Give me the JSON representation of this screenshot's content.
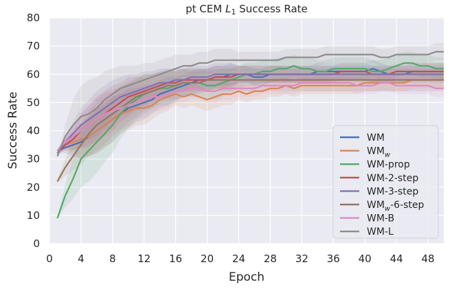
{
  "chart_data": {
    "type": "line",
    "title_prefix": "pt CEM ",
    "title_var": "L",
    "title_sub": "1",
    "title_suffix": " Success Rate",
    "xlabel": "Epoch",
    "ylabel": "Success Rate",
    "xlim": [
      0,
      50
    ],
    "ylim": [
      0,
      80
    ],
    "xticks": [
      0,
      4,
      8,
      12,
      16,
      20,
      24,
      28,
      32,
      36,
      40,
      44,
      48
    ],
    "yticks": [
      0,
      10,
      20,
      30,
      40,
      50,
      60,
      70,
      80
    ],
    "grid": true,
    "legend_position": "lower-right",
    "x": [
      1,
      2,
      3,
      4,
      5,
      6,
      7,
      8,
      9,
      10,
      11,
      12,
      13,
      14,
      15,
      16,
      17,
      18,
      19,
      20,
      21,
      22,
      23,
      24,
      25,
      26,
      27,
      28,
      29,
      30,
      31,
      32,
      33,
      34,
      35,
      36,
      37,
      38,
      39,
      40,
      41,
      42,
      43,
      44,
      45,
      46,
      47,
      48,
      49,
      50
    ],
    "series": [
      {
        "name": "WM",
        "legend_main": "WM",
        "legend_sub": "",
        "color": "#4c72b0",
        "values": [
          33,
          34,
          35,
          36,
          38,
          40,
          42,
          44,
          46,
          48,
          49,
          50,
          51,
          53,
          54,
          55,
          56,
          57,
          58,
          58,
          59,
          59,
          60,
          60,
          60,
          59,
          59,
          60,
          60,
          60,
          60,
          60,
          60,
          61,
          61,
          61,
          61,
          61,
          61,
          61,
          62,
          61,
          60,
          60,
          60,
          61,
          61,
          61,
          61,
          61
        ],
        "spread": [
          0.5,
          2,
          4,
          6,
          7,
          8,
          8,
          8,
          7,
          7,
          6,
          6,
          5,
          5,
          5,
          4,
          4,
          4,
          4,
          4,
          4,
          4,
          4,
          3,
          3,
          3,
          3,
          3,
          3,
          3,
          3,
          3,
          3,
          3,
          3,
          3,
          3,
          3,
          3,
          3,
          3,
          3,
          3,
          3,
          3,
          3,
          3,
          3,
          3,
          3
        ]
      },
      {
        "name": "WMw",
        "legend_main": "WM",
        "legend_sub": "w",
        "color": "#dd8452",
        "values": [
          33,
          35,
          36,
          37,
          38,
          40,
          42,
          44,
          46,
          47,
          48,
          48,
          49,
          51,
          52,
          53,
          52,
          53,
          52,
          51,
          52,
          53,
          53,
          54,
          53,
          54,
          54,
          55,
          55,
          56,
          55,
          56,
          56,
          56,
          56,
          56,
          56,
          56,
          56,
          57,
          57,
          57,
          57,
          57,
          57,
          58,
          58,
          58,
          58,
          58
        ],
        "spread": [
          0.5,
          2,
          4,
          6,
          7,
          8,
          8,
          8,
          7,
          7,
          6,
          6,
          5,
          5,
          5,
          4,
          4,
          4,
          4,
          4,
          4,
          4,
          4,
          3,
          3,
          3,
          3,
          3,
          3,
          3,
          3,
          3,
          3,
          3,
          3,
          3,
          3,
          3,
          3,
          3,
          3,
          3,
          3,
          3,
          3,
          3,
          3,
          3,
          3,
          3
        ]
      },
      {
        "name": "WM-prop",
        "legend_main": "WM-prop",
        "legend_sub": "",
        "color": "#55a868",
        "values": [
          9,
          17,
          23,
          30,
          33,
          36,
          39,
          42,
          46,
          49,
          51,
          53,
          54,
          55,
          55,
          56,
          57,
          57,
          57,
          56,
          56,
          57,
          58,
          59,
          60,
          60,
          61,
          61,
          62,
          62,
          63,
          62,
          62,
          61,
          61,
          62,
          62,
          62,
          62,
          62,
          61,
          61,
          62,
          63,
          64,
          64,
          63,
          63,
          62,
          62
        ],
        "spread": [
          0.5,
          4,
          7,
          10,
          11,
          11,
          10,
          10,
          9,
          8,
          7,
          7,
          6,
          6,
          6,
          6,
          5,
          5,
          5,
          5,
          5,
          5,
          4,
          4,
          4,
          4,
          4,
          4,
          4,
          4,
          4,
          4,
          4,
          4,
          4,
          4,
          4,
          4,
          4,
          4,
          4,
          4,
          4,
          4,
          4,
          4,
          4,
          4,
          4,
          4
        ]
      },
      {
        "name": "WM-2-step",
        "legend_main": "WM-2-step",
        "legend_sub": "",
        "color": "#c44e52",
        "values": [
          32,
          35,
          37,
          40,
          42,
          44,
          46,
          48,
          50,
          52,
          53,
          54,
          55,
          56,
          57,
          57,
          58,
          58,
          58,
          58,
          59,
          59,
          59,
          60,
          60,
          60,
          60,
          60,
          60,
          60,
          60,
          60,
          60,
          60,
          60,
          60,
          61,
          61,
          61,
          61,
          60,
          60,
          60,
          61,
          61,
          61,
          61,
          61,
          61,
          61
        ],
        "spread": [
          0.5,
          2,
          4,
          6,
          7,
          8,
          8,
          8,
          7,
          7,
          6,
          6,
          5,
          5,
          5,
          4,
          4,
          4,
          4,
          4,
          4,
          4,
          4,
          3,
          3,
          3,
          3,
          3,
          3,
          3,
          3,
          3,
          3,
          3,
          3,
          3,
          3,
          3,
          3,
          3,
          3,
          3,
          3,
          3,
          3,
          3,
          3,
          3,
          3,
          3
        ]
      },
      {
        "name": "WM-3-step",
        "legend_main": "WM-3-step",
        "legend_sub": "",
        "color": "#8172b3",
        "values": [
          32,
          36,
          39,
          42,
          44,
          46,
          48,
          50,
          52,
          53,
          54,
          55,
          56,
          57,
          57,
          58,
          58,
          59,
          59,
          59,
          60,
          60,
          60,
          60,
          60,
          60,
          60,
          60,
          60,
          60,
          60,
          60,
          60,
          60,
          60,
          60,
          60,
          60,
          60,
          60,
          60,
          60,
          60,
          60,
          60,
          60,
          60,
          60,
          60,
          60
        ],
        "spread": [
          0.5,
          2,
          4,
          6,
          7,
          8,
          8,
          8,
          7,
          7,
          6,
          6,
          5,
          5,
          5,
          4,
          4,
          4,
          4,
          4,
          4,
          4,
          4,
          3,
          3,
          3,
          3,
          3,
          3,
          3,
          3,
          3,
          3,
          3,
          3,
          3,
          3,
          3,
          3,
          3,
          3,
          3,
          3,
          3,
          3,
          3,
          3,
          3,
          3,
          3
        ]
      },
      {
        "name": "WMw-6-step",
        "legend_main": "WM",
        "legend_sub": "w",
        "legend_tail": "-6-step",
        "color": "#937860",
        "values": [
          22,
          27,
          31,
          35,
          39,
          42,
          44,
          46,
          48,
          50,
          52,
          53,
          54,
          55,
          56,
          56,
          57,
          57,
          57,
          58,
          58,
          58,
          58,
          58,
          58,
          58,
          58,
          58,
          58,
          58,
          58,
          58,
          58,
          58,
          58,
          58,
          58,
          58,
          58,
          58,
          58,
          58,
          58,
          58,
          58,
          58,
          58,
          58,
          58,
          58
        ],
        "spread": [
          0.5,
          3,
          5,
          7,
          8,
          9,
          9,
          8,
          8,
          7,
          7,
          6,
          6,
          5,
          5,
          5,
          5,
          4,
          4,
          4,
          4,
          4,
          4,
          4,
          4,
          4,
          4,
          4,
          4,
          4,
          4,
          4,
          4,
          4,
          4,
          4,
          4,
          4,
          4,
          4,
          4,
          4,
          4,
          4,
          4,
          4,
          4,
          4,
          4,
          4
        ]
      },
      {
        "name": "WM-B",
        "legend_main": "WM-B",
        "legend_sub": "",
        "color": "#da8bc3",
        "values": [
          33,
          36,
          38,
          40,
          42,
          44,
          46,
          47,
          48,
          49,
          50,
          51,
          52,
          52,
          53,
          54,
          54,
          55,
          55,
          54,
          54,
          55,
          55,
          55,
          55,
          55,
          56,
          56,
          56,
          56,
          56,
          57,
          57,
          57,
          57,
          57,
          57,
          57,
          56,
          56,
          56,
          57,
          57,
          56,
          56,
          56,
          56,
          56,
          55,
          55
        ],
        "spread": [
          0.5,
          2,
          4,
          6,
          7,
          8,
          8,
          8,
          7,
          7,
          6,
          6,
          5,
          5,
          5,
          4,
          4,
          4,
          4,
          4,
          4,
          4,
          4,
          3,
          3,
          3,
          3,
          3,
          3,
          3,
          3,
          3,
          3,
          3,
          3,
          3,
          3,
          3,
          3,
          3,
          3,
          3,
          3,
          3,
          3,
          3,
          3,
          3,
          3,
          3
        ]
      },
      {
        "name": "WM-L",
        "legend_main": "WM-L",
        "legend_sub": "",
        "color": "#8c8c8c",
        "values": [
          31,
          38,
          42,
          45,
          46,
          48,
          51,
          53,
          55,
          56,
          57,
          58,
          59,
          60,
          61,
          62,
          63,
          63,
          64,
          64,
          65,
          65,
          65,
          65,
          65,
          65,
          65,
          65,
          65,
          66,
          66,
          66,
          66,
          66,
          67,
          67,
          67,
          67,
          67,
          67,
          67,
          66,
          66,
          67,
          67,
          67,
          67,
          67,
          68,
          68
        ],
        "spread": [
          0.5,
          4,
          9,
          11,
          12,
          11,
          10,
          9,
          8,
          7,
          6,
          6,
          5,
          5,
          5,
          5,
          4,
          4,
          4,
          4,
          4,
          4,
          4,
          3,
          3,
          3,
          3,
          3,
          3,
          3,
          3,
          3,
          3,
          3,
          3,
          3,
          3,
          3,
          3,
          3,
          3,
          3,
          3,
          3,
          3,
          3,
          3,
          3,
          3,
          3
        ]
      }
    ]
  }
}
